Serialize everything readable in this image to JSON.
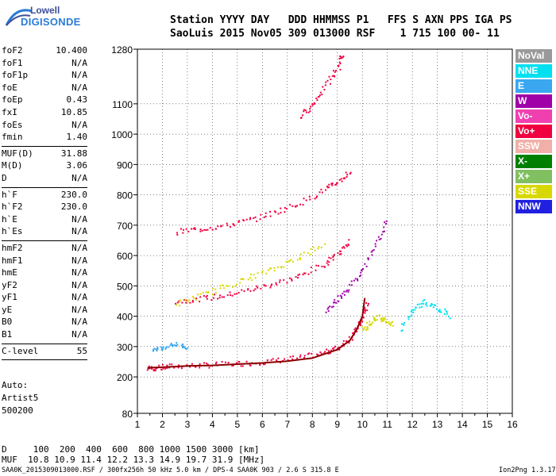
{
  "logo": {
    "line1": "Lowell",
    "line2": "DIGISONDE"
  },
  "header": {
    "row1": "Station YYYY DAY   DDD HHMMSS P1   FFS S AXN PPS IGA PS",
    "row2": "SaoLuis 2015 Nov05 309 013000 RSF    1 715 100 00- 11"
  },
  "params": [
    {
      "k": "foF2",
      "v": "10.400"
    },
    {
      "k": "foF1",
      "v": "N/A"
    },
    {
      "k": "foF1p",
      "v": "N/A"
    },
    {
      "k": "foE",
      "v": "N/A"
    },
    {
      "k": "foEp",
      "v": "0.43"
    },
    {
      "k": "fxI",
      "v": "10.85"
    },
    {
      "k": "foEs",
      "v": "N/A"
    },
    {
      "k": "fmin",
      "v": "1.40"
    },
    {
      "sep": true
    },
    {
      "k": "MUF(D)",
      "v": "31.88"
    },
    {
      "k": "M(D)",
      "v": "3.06"
    },
    {
      "k": "D",
      "v": "N/A"
    },
    {
      "sep": true
    },
    {
      "k": "h`F",
      "v": "230.0"
    },
    {
      "k": "h`F2",
      "v": "230.0"
    },
    {
      "k": "h`E",
      "v": "N/A"
    },
    {
      "k": "h`Es",
      "v": "N/A"
    },
    {
      "sep": true
    },
    {
      "k": "hmF2",
      "v": "N/A"
    },
    {
      "k": "hmF1",
      "v": "N/A"
    },
    {
      "k": "hmE",
      "v": "N/A"
    },
    {
      "k": "yF2",
      "v": "N/A"
    },
    {
      "k": "yF1",
      "v": "N/A"
    },
    {
      "k": "yE",
      "v": "N/A"
    },
    {
      "k": "B0",
      "v": "N/A"
    },
    {
      "k": "B1",
      "v": "N/A"
    },
    {
      "sep": true
    },
    {
      "k": "C-level",
      "v": "55"
    },
    {
      "sep": true
    }
  ],
  "auto": {
    "l1": "Auto:",
    "l2": "Artist5",
    "l3": "500200"
  },
  "footer": {
    "d_row": "D     100  200  400  600  800 1000 1500 3000 [km]",
    "muf_row": "MUF  10.8 10.9 11.4 12.2 13.3 14.9 19.7 31.9 [MHz]",
    "info": "SAA0K_2015309013000.RSF / 300fx256h 50 kHz 5.0 km / DPS-4 SAA0K 903 / 2.6 S 315.8 E",
    "version": "Ion2Png 1.3.17"
  },
  "legend": [
    {
      "label": "NoVal",
      "color": "#999999"
    },
    {
      "label": "NNE",
      "color": "#00e0f0"
    },
    {
      "label": "E",
      "color": "#3aa7f0"
    },
    {
      "label": "W",
      "color": "#a000a8"
    },
    {
      "label": "Vo-",
      "color": "#f040b0"
    },
    {
      "label": "Vo+",
      "color": "#f00040"
    },
    {
      "label": "SSW",
      "color": "#f0b0a8"
    },
    {
      "label": "X-",
      "color": "#008000"
    },
    {
      "label": "X+",
      "color": "#80c060"
    },
    {
      "label": "SSE",
      "color": "#d8d800"
    },
    {
      "label": "NNW",
      "color": "#2020e0"
    }
  ],
  "chart_data": {
    "type": "scatter",
    "x_ticks": [
      "1",
      "2",
      "3",
      "4",
      "5",
      "6",
      "7",
      "8",
      "9",
      "10",
      "11",
      "12",
      "13",
      "14",
      "15",
      "16"
    ],
    "y_ticks": [
      "80",
      "200",
      "300",
      "400",
      "500",
      "600",
      "700",
      "800",
      "900",
      "1000",
      "1100",
      "1280"
    ],
    "xlim": [
      1,
      16
    ],
    "ylim": [
      80,
      1280
    ],
    "series": [
      {
        "color": "#f00040",
        "x": [
          1.4,
          1.8,
          2.5,
          3.5,
          4.5,
          5.5,
          6.5,
          7.5,
          8.5,
          9.0,
          9.5,
          9.8,
          10.0,
          10.2
        ],
        "y": [
          230,
          232,
          238,
          240,
          244,
          248,
          255,
          266,
          283,
          298,
          330,
          365,
          400,
          450
        ]
      },
      {
        "color": "#f00040",
        "x": [
          2.5,
          3.5,
          4.5,
          5.5,
          6.5,
          7.5,
          8.5,
          9.0,
          9.5
        ],
        "y": [
          450,
          460,
          470,
          490,
          510,
          535,
          575,
          610,
          650
        ]
      },
      {
        "color": "#f00040",
        "x": [
          2.5,
          3.5,
          4.5,
          5.5,
          6.5,
          7.5,
          8.5,
          9.0,
          9.5
        ],
        "y": [
          680,
          690,
          700,
          720,
          745,
          775,
          820,
          845,
          880
        ]
      },
      {
        "color": "#f00040",
        "x": [
          7.5,
          8.0,
          8.5,
          9.0,
          9.2
        ],
        "y": [
          1060,
          1100,
          1160,
          1220,
          1270
        ]
      },
      {
        "color": "#d8d800",
        "x": [
          2.5,
          3.5,
          4.5,
          5.5,
          6.5,
          7.5,
          8.5
        ],
        "y": [
          440,
          470,
          500,
          530,
          560,
          600,
          640
        ]
      },
      {
        "color": "#a000a8",
        "x": [
          8.5,
          9.0,
          9.5,
          10.0,
          10.5,
          11.0
        ],
        "y": [
          420,
          460,
          500,
          560,
          640,
          720
        ]
      },
      {
        "color": "#00e0f0",
        "x": [
          11.5,
          12.0,
          12.5,
          13.0,
          13.5
        ],
        "y": [
          360,
          420,
          450,
          430,
          400
        ]
      },
      {
        "color": "#d8d800",
        "x": [
          10.0,
          10.3,
          10.6,
          10.9,
          11.2
        ],
        "y": [
          360,
          380,
          400,
          390,
          370
        ]
      },
      {
        "color": "#3aa7f0",
        "x": [
          1.6,
          2.0,
          2.5,
          3.0
        ],
        "y": [
          290,
          300,
          310,
          300
        ]
      }
    ],
    "trace": {
      "color": "#8a0000",
      "x": [
        1.4,
        2.0,
        3.0,
        4.0,
        5.0,
        6.0,
        7.0,
        8.0,
        9.0,
        9.5,
        9.8,
        10.0,
        10.1
      ],
      "y": [
        230,
        232,
        236,
        238,
        242,
        246,
        252,
        262,
        290,
        320,
        360,
        400,
        460
      ]
    }
  }
}
